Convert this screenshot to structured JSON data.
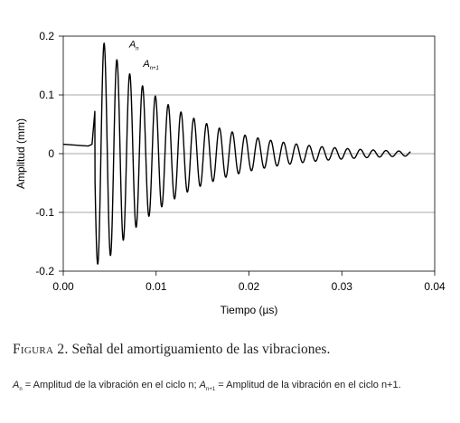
{
  "chart_data": {
    "type": "line",
    "title": "",
    "xlabel": "Tiempo  (µs)",
    "ylabel": "Amplitud  (mm)",
    "xlim": [
      0,
      0.04
    ],
    "ylim": [
      -0.2,
      0.2
    ],
    "x_ticks": [
      "0.00",
      "0.01",
      "0.02",
      "0.03",
      "0.04"
    ],
    "y_ticks": [
      "0.2",
      "0.1",
      "0",
      "-0.1",
      "-0.2"
    ],
    "grid": "horizontal",
    "series_color": "#000000",
    "series": [
      {
        "signal": {
          "pre_trigger": [
            [
              0.0,
              0.016
            ],
            [
              0.0018,
              0.014
            ],
            [
              0.0027,
              0.013
            ],
            [
              0.0031,
              0.016
            ],
            [
              0.0034,
              0.072
            ]
          ],
          "oscillation_start": 0.0034,
          "period": 0.00138,
          "first_peak_time": 0.0044,
          "first_peak_amplitude": 0.188,
          "decay_factor_per_cycle": 0.85,
          "amplitude_floor": 0.0025,
          "end_time": 0.0374
        }
      }
    ],
    "annotations": [
      {
        "base": "A",
        "subscript": "n",
        "x": 0.0071,
        "y": 0.181
      },
      {
        "base": "A",
        "subscript": "n+1",
        "x": 0.0086,
        "y": 0.148
      }
    ]
  },
  "caption": {
    "figure_label": "Figura 2.",
    "text": "Señal del amortiguamiento de las vibraciones."
  },
  "note": {
    "a1_base": "A",
    "a1_sub": "n",
    "part1": " = Amplitud de la vibración en el ciclo n; ",
    "a2_base": "A",
    "a2_sub": "n+1",
    "part2": " = Amplitud de la vibración en el ciclo n+1."
  }
}
